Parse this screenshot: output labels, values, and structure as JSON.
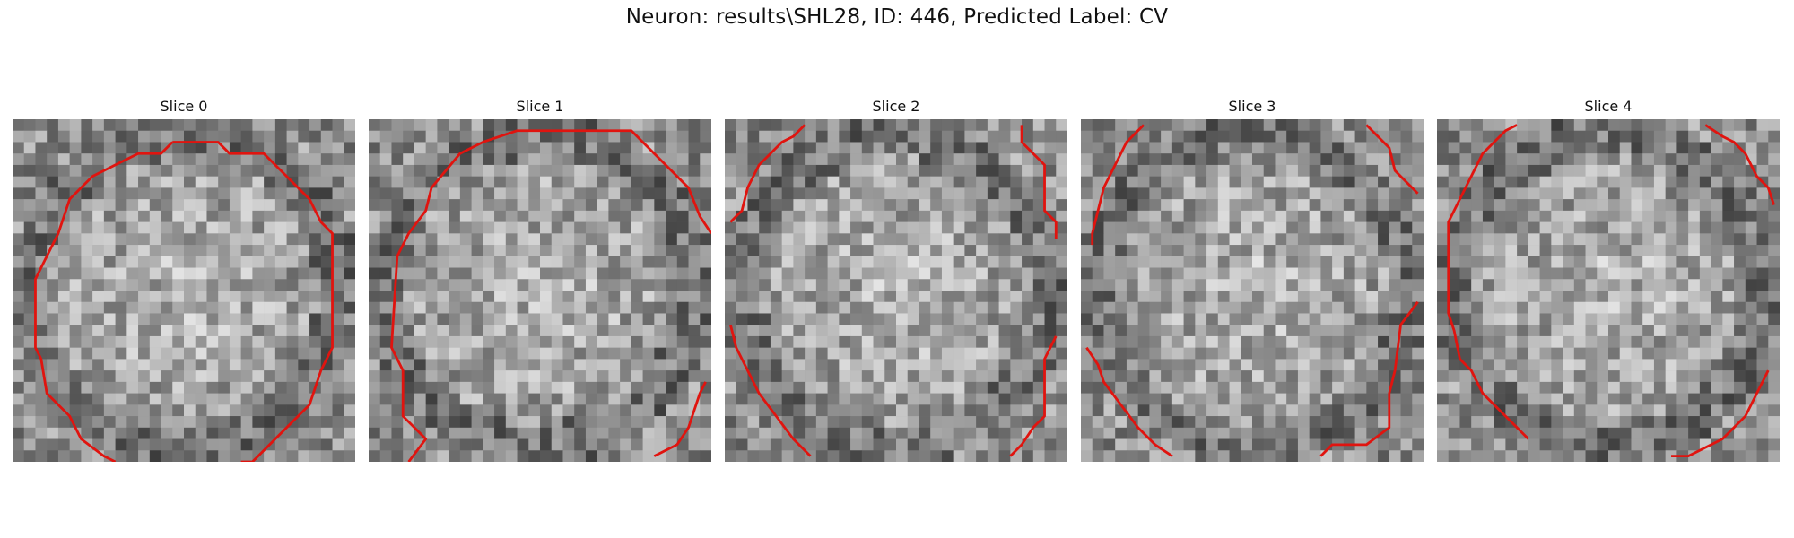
{
  "figure": {
    "title": "Neuron: results\\SHL28, ID: 446, Predicted Label: CV"
  },
  "panels": [
    {
      "label": "Slice 0",
      "seed": 11,
      "contour": [
        [
          14.0,
          2.0
        ],
        [
          18.0,
          2.0
        ],
        [
          19.0,
          3.0
        ],
        [
          22.0,
          3.0
        ],
        [
          24.0,
          5.0
        ],
        [
          26.0,
          7.0
        ],
        [
          27.0,
          9.0
        ],
        [
          28.0,
          10.0
        ],
        [
          28.0,
          20.0
        ],
        [
          27.0,
          22.0
        ],
        [
          26.0,
          25.0
        ],
        [
          24.0,
          27.0
        ],
        [
          22.0,
          29.0
        ],
        [
          21.0,
          30.0
        ],
        [
          20.0,
          30.0
        ]
      ],
      "contour2": [
        [
          9.0,
          30.0
        ],
        [
          8.0,
          29.5
        ],
        [
          6.0,
          28.0
        ],
        [
          5.0,
          26.0
        ],
        [
          3.0,
          24.0
        ],
        [
          2.5,
          21.0
        ],
        [
          2.0,
          20.0
        ],
        [
          2.0,
          14.0
        ],
        [
          3.0,
          12.0
        ],
        [
          4.0,
          10.0
        ],
        [
          5.0,
          7.0
        ],
        [
          7.0,
          5.0
        ],
        [
          9.0,
          4.0
        ],
        [
          11.0,
          3.0
        ],
        [
          13.0,
          3.0
        ],
        [
          14.0,
          2.0
        ]
      ],
      "colors": {
        "contour": "#e0140f"
      }
    },
    {
      "label": "Slice 1",
      "seed": 23,
      "contour": [
        [
          3.5,
          30.0
        ],
        [
          5.0,
          28.0
        ],
        [
          3.0,
          26.0
        ],
        [
          3.0,
          22.0
        ],
        [
          2.0,
          20.0
        ],
        [
          2.5,
          12.0
        ],
        [
          3.5,
          10.0
        ],
        [
          5.0,
          8.0
        ],
        [
          5.5,
          6.0
        ],
        [
          8.0,
          3.0
        ],
        [
          10.0,
          2.0
        ],
        [
          13.0,
          1.0
        ],
        [
          23.0,
          1.0
        ],
        [
          25.0,
          3.0
        ],
        [
          27.0,
          5.0
        ],
        [
          28.0,
          6.0
        ],
        [
          29.0,
          8.5
        ],
        [
          30.0,
          10.0
        ]
      ],
      "contour2": [
        [
          29.5,
          23.0
        ],
        [
          29.0,
          24.0
        ],
        [
          28.0,
          27.0
        ],
        [
          27.0,
          28.5
        ],
        [
          25.0,
          29.5
        ]
      ],
      "colors": {
        "contour": "#e0140f"
      }
    },
    {
      "label": "Slice 2",
      "seed": 37,
      "contour": [
        [
          7.0,
          0.5
        ],
        [
          6.0,
          1.5
        ],
        [
          5.0,
          2.0
        ],
        [
          4.0,
          3.0
        ],
        [
          3.0,
          4.0
        ],
        [
          2.0,
          6.0
        ],
        [
          1.5,
          8.0
        ],
        [
          0.5,
          9.0
        ]
      ],
      "contour2": [
        [
          0.5,
          18.0
        ],
        [
          1.0,
          20.0
        ],
        [
          2.0,
          22.0
        ],
        [
          3.0,
          24.0
        ],
        [
          4.5,
          26.0
        ],
        [
          6.0,
          28.0
        ],
        [
          7.5,
          29.5
        ]
      ],
      "contour3": [
        [
          26.0,
          0.5
        ],
        [
          26.0,
          2.0
        ],
        [
          28.0,
          4.0
        ],
        [
          28.0,
          8.0
        ],
        [
          29.0,
          9.0
        ],
        [
          29.0,
          10.5
        ]
      ],
      "contour4": [
        [
          29.0,
          19.0
        ],
        [
          28.0,
          21.0
        ],
        [
          28.0,
          26.0
        ],
        [
          27.0,
          27.0
        ],
        [
          26.0,
          28.5
        ],
        [
          25.0,
          29.5
        ]
      ],
      "colors": {
        "contour": "#e0140f"
      }
    },
    {
      "label": "Slice 3",
      "seed": 53,
      "contour": [
        [
          5.5,
          0.5
        ],
        [
          4.0,
          2.0
        ],
        [
          3.0,
          4.0
        ],
        [
          2.0,
          6.0
        ],
        [
          1.5,
          8.0
        ],
        [
          1.0,
          10.0
        ],
        [
          1.0,
          11.0
        ]
      ],
      "contour2": [
        [
          0.5,
          20.0
        ],
        [
          1.5,
          21.5
        ],
        [
          2.0,
          23.0
        ],
        [
          3.5,
          25.0
        ],
        [
          5.0,
          27.0
        ],
        [
          6.5,
          28.5
        ],
        [
          8.0,
          29.5
        ]
      ],
      "contour3": [
        [
          25.0,
          0.5
        ],
        [
          27.0,
          2.5
        ],
        [
          27.5,
          4.5
        ],
        [
          28.5,
          5.5
        ],
        [
          29.5,
          6.5
        ]
      ],
      "contour4": [
        [
          29.5,
          16.0
        ],
        [
          28.0,
          18.0
        ],
        [
          27.5,
          22.0
        ],
        [
          27.0,
          24.0
        ],
        [
          27.0,
          27.0
        ],
        [
          25.0,
          28.5
        ],
        [
          22.0,
          28.5
        ],
        [
          21.0,
          29.5
        ]
      ],
      "colors": {
        "contour": "#e0140f"
      }
    },
    {
      "label": "Slice 4",
      "seed": 71,
      "contour": [
        [
          7.0,
          0.5
        ],
        [
          6.0,
          1.0
        ],
        [
          5.0,
          2.0
        ],
        [
          4.0,
          3.0
        ],
        [
          3.0,
          5.0
        ],
        [
          2.0,
          7.0
        ],
        [
          1.0,
          9.0
        ],
        [
          1.0,
          12.0
        ],
        [
          1.0,
          17.0
        ],
        [
          1.5,
          18.5
        ],
        [
          2.0,
          21.0
        ],
        [
          3.0,
          22.0
        ],
        [
          4.0,
          24.0
        ],
        [
          5.0,
          25.0
        ],
        [
          6.0,
          26.0
        ],
        [
          7.0,
          27.0
        ],
        [
          8.0,
          28.0
        ]
      ],
      "contour2": [
        [
          23.5,
          0.5
        ],
        [
          25.0,
          1.5
        ],
        [
          26.0,
          2.0
        ],
        [
          27.0,
          3.0
        ],
        [
          28.0,
          5.0
        ],
        [
          29.0,
          6.0
        ],
        [
          29.5,
          7.5
        ]
      ],
      "contour3": [
        [
          29.0,
          22.0
        ],
        [
          28.0,
          24.0
        ],
        [
          27.0,
          26.0
        ],
        [
          26.0,
          27.0
        ],
        [
          25.0,
          28.0
        ],
        [
          22.0,
          29.5
        ],
        [
          20.5,
          29.5
        ]
      ],
      "colors": {
        "contour": "#e0140f"
      }
    }
  ]
}
